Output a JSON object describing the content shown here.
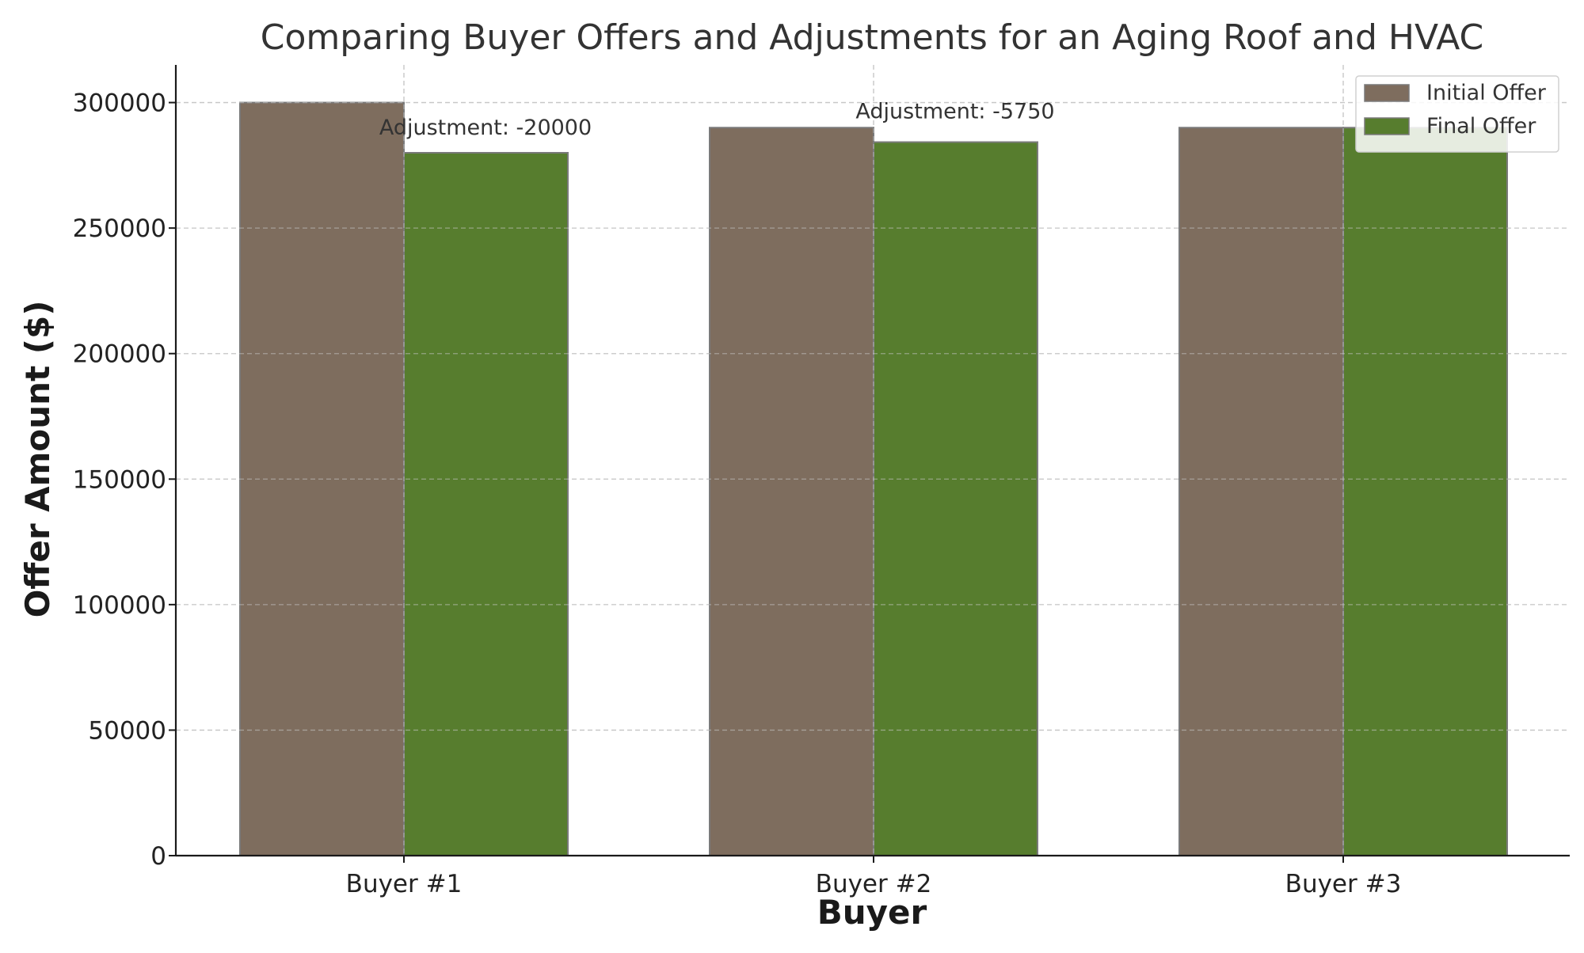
{
  "chart_data": {
    "type": "bar",
    "title": "Comparing Buyer Offers and Adjustments for an Aging Roof and HVAC",
    "xlabel": "Buyer",
    "ylabel": "Offer Amount ($)",
    "categories": [
      "Buyer #1",
      "Buyer #2",
      "Buyer #3"
    ],
    "series": [
      {
        "name": "Initial Offer",
        "values": [
          300000,
          290000,
          290000
        ],
        "color": "#7e6d5e"
      },
      {
        "name": "Final Offer",
        "values": [
          280000,
          284250,
          290000
        ],
        "color": "#577d2e"
      }
    ],
    "ylim": [
      0,
      315000
    ],
    "yticks": [
      0,
      50000,
      100000,
      150000,
      200000,
      250000,
      300000
    ],
    "grid": true,
    "legend_position": "top-right",
    "annotations": [
      {
        "category": "Buyer #1",
        "text": "Adjustment: -20000"
      },
      {
        "category": "Buyer #2",
        "text": "Adjustment: -5750"
      }
    ]
  }
}
